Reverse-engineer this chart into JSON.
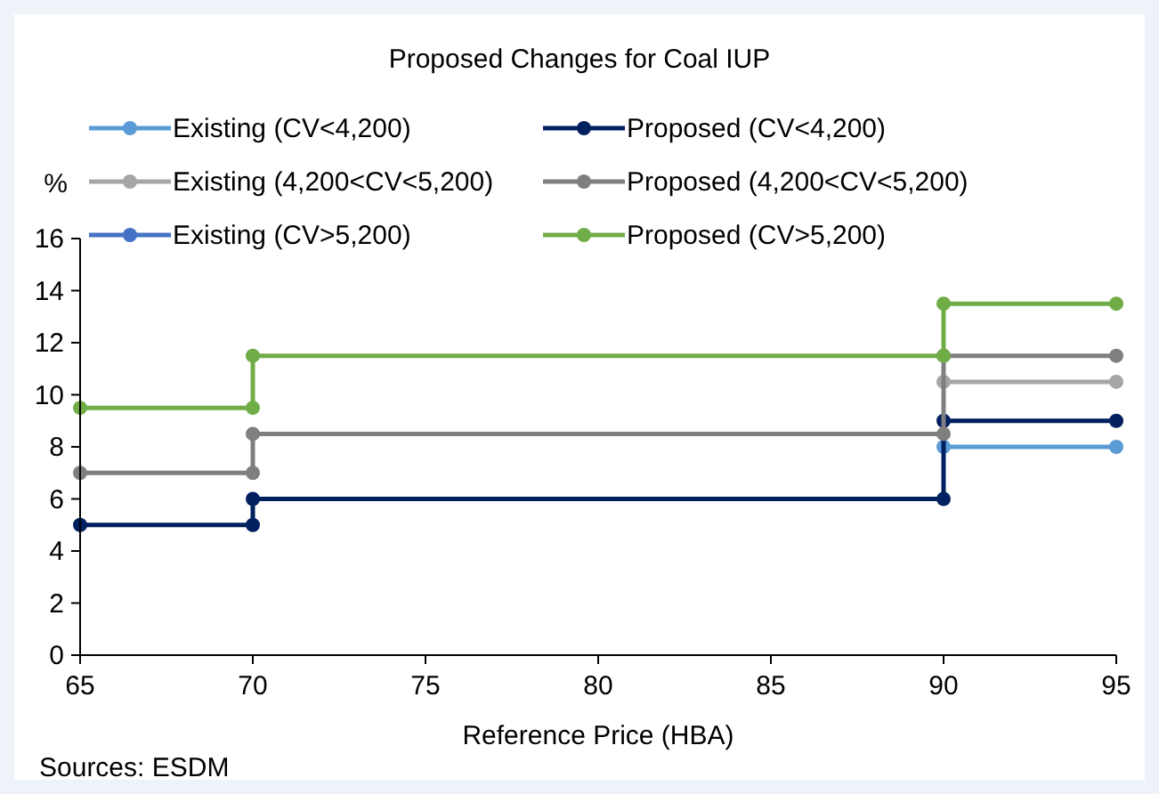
{
  "chart_data": {
    "type": "line",
    "title": "Proposed Changes for Coal IUP",
    "xlabel": "Reference Price (HBA)",
    "ylabel": "%",
    "annotations": [
      "Sources: ESDM"
    ],
    "x": [
      65,
      70,
      70,
      90,
      90,
      95
    ],
    "xlim": [
      65,
      95
    ],
    "xticks": [
      65,
      70,
      75,
      80,
      85,
      90,
      95
    ],
    "ylim": [
      0,
      16
    ],
    "yticks": [
      0,
      2,
      4,
      6,
      8,
      10,
      12,
      14,
      16
    ],
    "grid": false,
    "legend": "top",
    "marker": "circle",
    "line_style": "solid",
    "series": [
      {
        "name": "Existing (CV<4,200)",
        "color": "#5b9bd5",
        "values": [
          null,
          null,
          null,
          null,
          8,
          8
        ]
      },
      {
        "name": "Proposed (CV<4,200)",
        "color": "#002060",
        "values": [
          5,
          5,
          6,
          6,
          9,
          9
        ]
      },
      {
        "name": "Existing (4,200<CV<5,200)",
        "color": "#a6a6a6",
        "values": [
          null,
          null,
          null,
          null,
          10.5,
          10.5
        ]
      },
      {
        "name": "Proposed (4,200<CV<5,200)",
        "color": "#7f7f7f",
        "values": [
          7,
          7,
          8.5,
          8.5,
          11.5,
          11.5
        ]
      },
      {
        "name": "Existing (CV>5,200)",
        "color": "#4472c4",
        "values": [
          null,
          null,
          null,
          null,
          null,
          null
        ]
      },
      {
        "name": "Proposed (CV>5,200)",
        "color": "#70ad47",
        "values": [
          9.5,
          9.5,
          11.5,
          11.5,
          13.5,
          13.5
        ]
      }
    ]
  }
}
